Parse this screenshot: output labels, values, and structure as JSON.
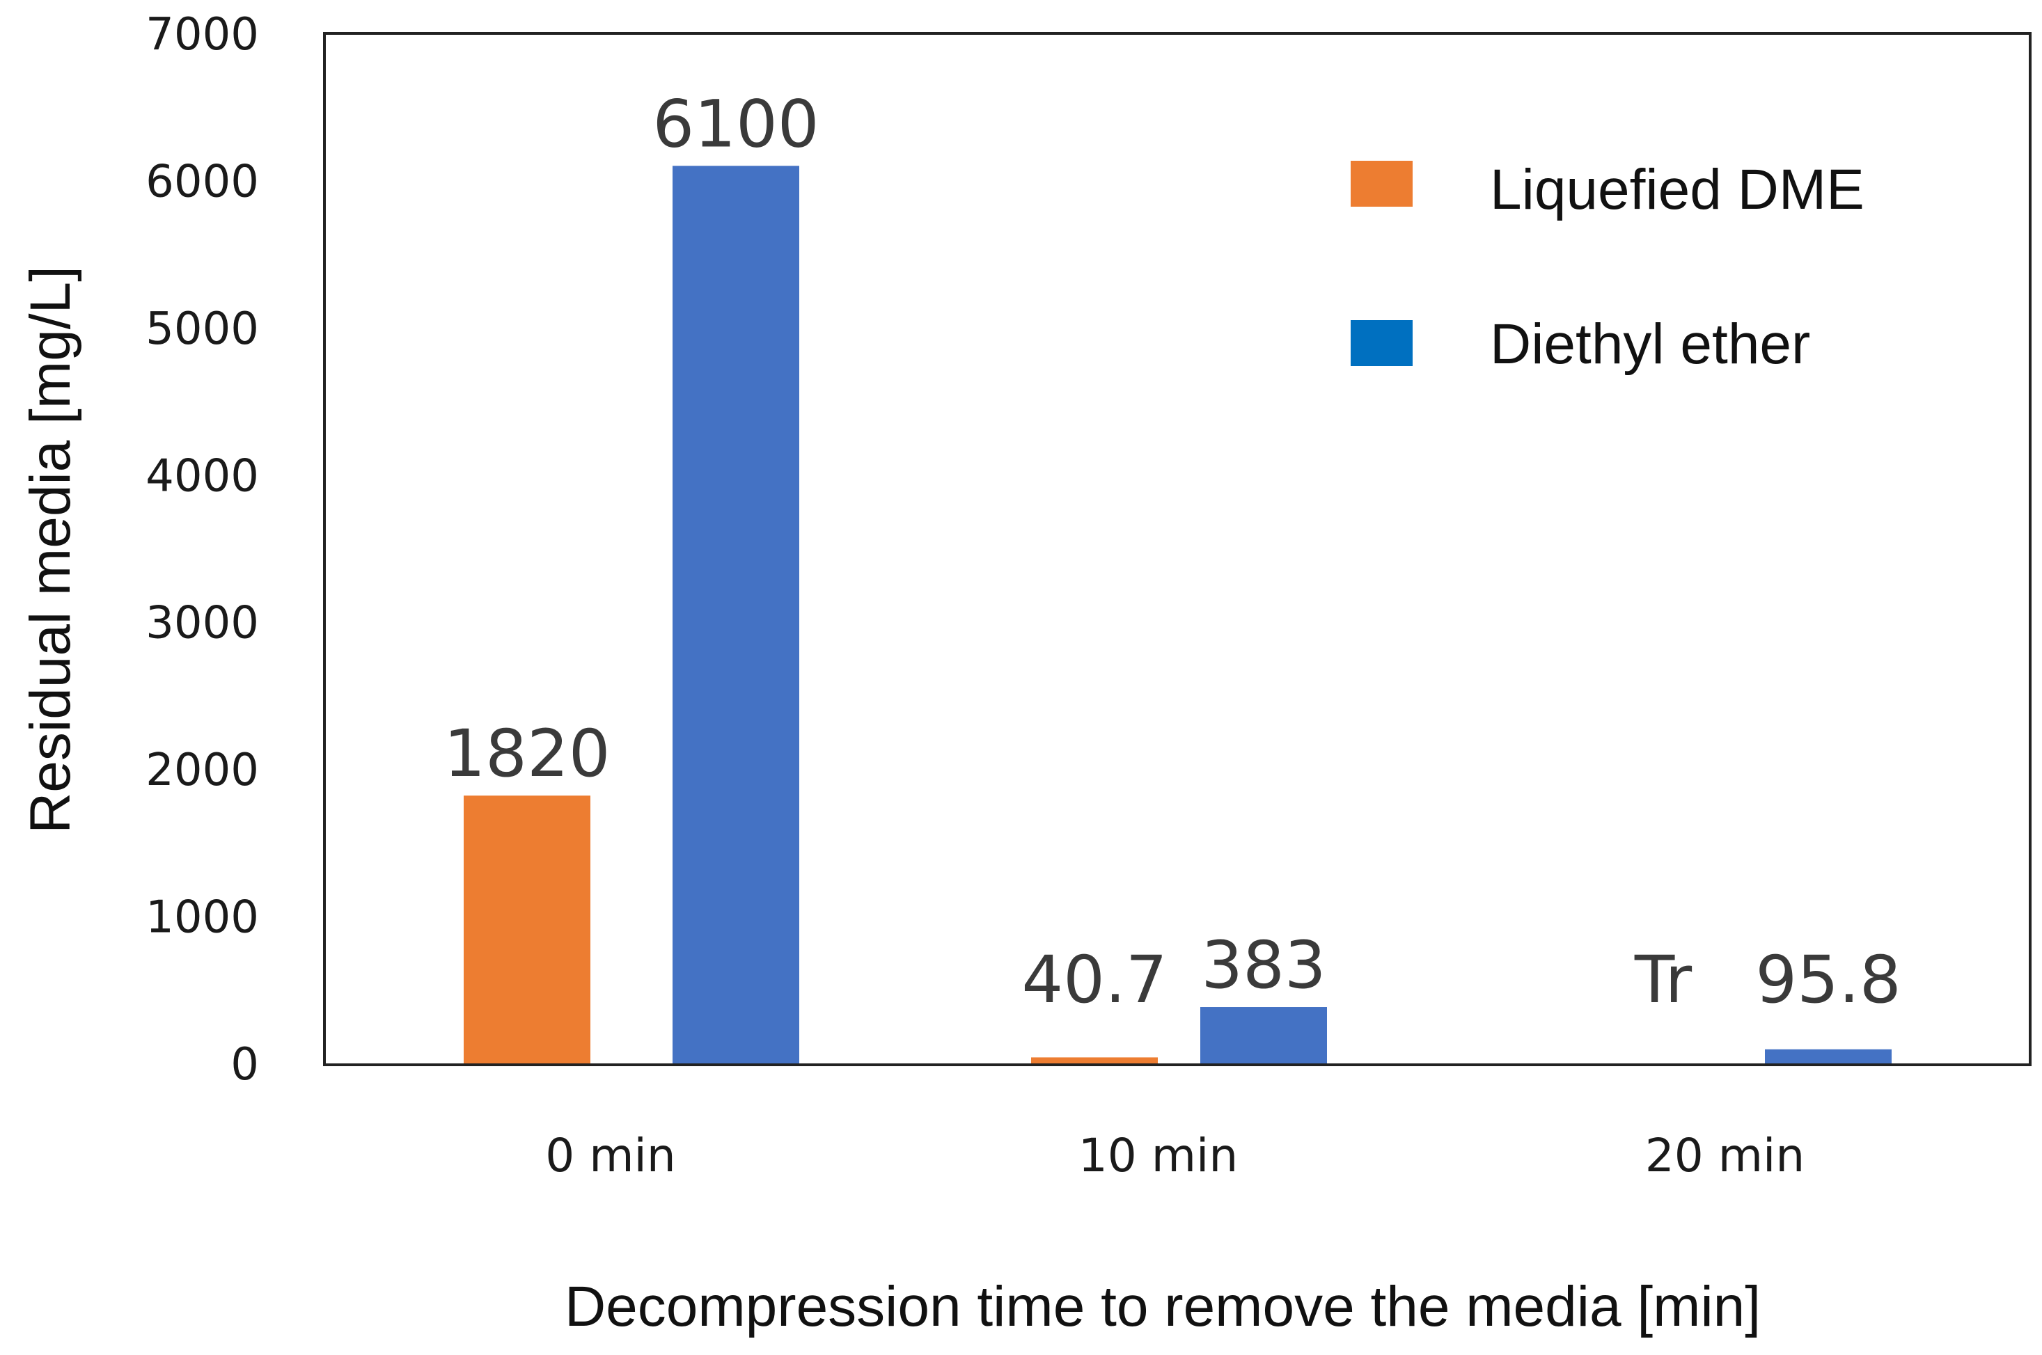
{
  "chart_data": {
    "type": "bar",
    "title": "",
    "xlabel": "Decompression time to remove the media [min]",
    "ylabel": "Residual media [mg/L]",
    "categories": [
      "0 min",
      "10 min",
      "20 min"
    ],
    "ylim": [
      0,
      7000
    ],
    "yticks": [
      0,
      1000,
      2000,
      3000,
      4000,
      5000,
      6000,
      7000
    ],
    "grid": false,
    "legend_position": "top-right",
    "series": [
      {
        "name": "Liquefied DME",
        "color": "#ED7D31",
        "values": [
          1820,
          40.7,
          0
        ],
        "labels": [
          "1820",
          "40.7",
          "Tr"
        ]
      },
      {
        "name": "Diethyl ether",
        "color": "#4472C4",
        "values": [
          6100,
          383,
          95.8
        ],
        "labels": [
          "6100",
          "383",
          "95.8"
        ]
      }
    ],
    "legend_swatch_colors": [
      "#ED7D31",
      "#0070C0"
    ]
  }
}
